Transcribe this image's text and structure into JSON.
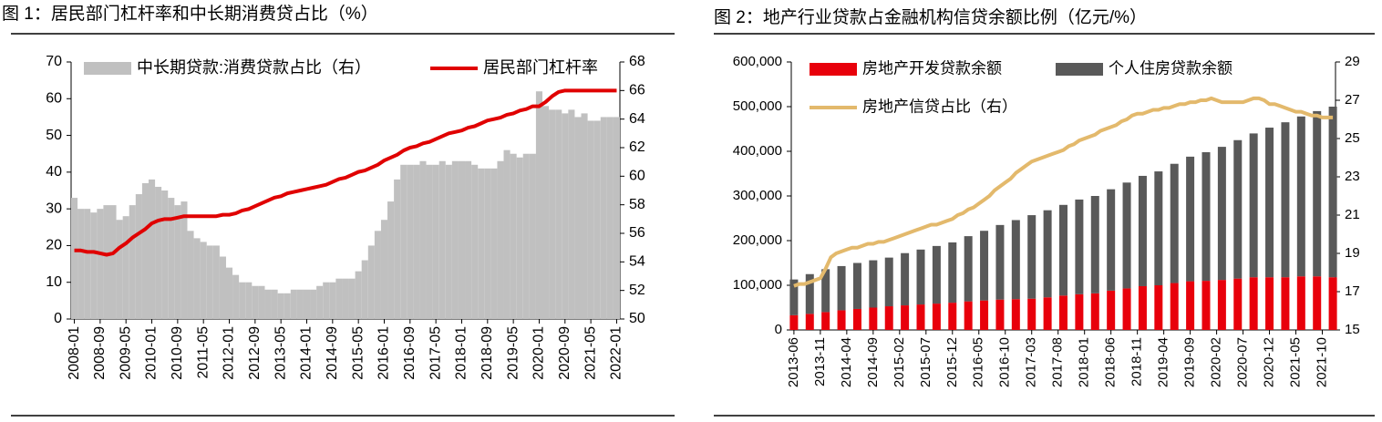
{
  "chart_data": [
    {
      "type": "bar_line",
      "title": "图 1：居民部门杠杆率和中长期消费贷占比（%）",
      "categories": [
        "2008-01",
        null,
        null,
        null,
        "2008-09",
        null,
        null,
        null,
        "2009-05",
        null,
        null,
        null,
        "2010-01",
        null,
        null,
        null,
        "2010-09",
        null,
        null,
        null,
        "2011-05",
        null,
        null,
        null,
        "2012-01",
        null,
        null,
        null,
        "2012-09",
        null,
        null,
        null,
        "2013-05",
        null,
        null,
        null,
        "2014-01",
        null,
        null,
        null,
        "2014-09",
        null,
        null,
        null,
        "2015-05",
        null,
        null,
        null,
        "2016-01",
        null,
        null,
        null,
        "2016-09",
        null,
        null,
        null,
        "2017-05",
        null,
        null,
        null,
        "2018-01",
        null,
        null,
        null,
        "2018-09",
        null,
        null,
        null,
        "2019-05",
        null,
        null,
        null,
        "2020-01",
        null,
        null,
        null,
        "2020-09",
        null,
        null,
        null,
        "2021-05",
        null,
        null,
        null,
        "2022-01"
      ],
      "series": [
        {
          "name": "中长期贷款:消费贷款占比（右）",
          "type": "bar",
          "color": "#c0c0c0",
          "axis": "y",
          "values": [
            33,
            30,
            30,
            29,
            30,
            31,
            31,
            27,
            28,
            31,
            34,
            37,
            38,
            36,
            35,
            33,
            31,
            32,
            24,
            22,
            21,
            20,
            20,
            17,
            14,
            12,
            10,
            10,
            9,
            9,
            8,
            8,
            7,
            7,
            8,
            8,
            8,
            8,
            9,
            10,
            10,
            11,
            11,
            11,
            13,
            16,
            20,
            24,
            27,
            32,
            38,
            42,
            42,
            42,
            43,
            42,
            42,
            43,
            42,
            43,
            43,
            43,
            42,
            41,
            41,
            41,
            43,
            46,
            45,
            44,
            45,
            45,
            62,
            58,
            57,
            57,
            56,
            57,
            55,
            56,
            54,
            54,
            55,
            55,
            55
          ]
        },
        {
          "name": "居民部门杠杆率",
          "type": "line",
          "color": "#e00000",
          "axis": "y2",
          "values": [
            54.8,
            54.8,
            54.7,
            54.7,
            54.6,
            54.5,
            54.6,
            55.0,
            55.3,
            55.7,
            56.0,
            56.3,
            56.7,
            56.9,
            57.0,
            57.0,
            57.1,
            57.2,
            57.2,
            57.2,
            57.2,
            57.2,
            57.2,
            57.3,
            57.3,
            57.4,
            57.6,
            57.7,
            57.9,
            58.1,
            58.3,
            58.5,
            58.6,
            58.8,
            58.9,
            59.0,
            59.1,
            59.2,
            59.3,
            59.4,
            59.6,
            59.8,
            59.9,
            60.1,
            60.3,
            60.4,
            60.6,
            60.8,
            61.1,
            61.3,
            61.5,
            61.8,
            62.0,
            62.1,
            62.3,
            62.4,
            62.6,
            62.8,
            63.0,
            63.1,
            63.2,
            63.4,
            63.5,
            63.7,
            63.9,
            64.0,
            64.1,
            64.3,
            64.4,
            64.6,
            64.7,
            64.9,
            64.9,
            65.2,
            65.6,
            65.9,
            66.0,
            66.0,
            66.0,
            66.0,
            66.0,
            66.0,
            66.0,
            66.0,
            66.0
          ]
        }
      ],
      "ylim": [
        0,
        70
      ],
      "yticks": [
        0,
        10,
        20,
        30,
        40,
        50,
        60,
        70
      ],
      "y2lim": [
        50,
        68
      ],
      "y2ticks": [
        50,
        52,
        54,
        56,
        58,
        60,
        62,
        64,
        66,
        68
      ],
      "stacked": false
    },
    {
      "type": "bar_line",
      "title": "图 2：地产行业贷款占金融机构信贷余额比例（亿元/%）",
      "categories": [
        "2013-06",
        null,
        null,
        null,
        null,
        "2013-11",
        null,
        null,
        null,
        null,
        "2014-04",
        null,
        null,
        null,
        null,
        "2014-09",
        null,
        null,
        null,
        null,
        "2015-02",
        null,
        null,
        null,
        null,
        "2015-07",
        null,
        null,
        null,
        null,
        "2015-12",
        null,
        null,
        null,
        null,
        "2016-05",
        null,
        null,
        null,
        null,
        "2016-10",
        null,
        null,
        null,
        null,
        "2017-03",
        null,
        null,
        null,
        null,
        "2017-08",
        null,
        null,
        null,
        null,
        "2018-01",
        null,
        null,
        null,
        null,
        "2018-06",
        null,
        null,
        null,
        null,
        "2018-11",
        null,
        null,
        null,
        null,
        "2019-04",
        null,
        null,
        null,
        null,
        "2019-09",
        null,
        null,
        null,
        null,
        "2020-02",
        null,
        null,
        null,
        null,
        "2020-07",
        null,
        null,
        null,
        null,
        "2020-12",
        null,
        null,
        null,
        null,
        "2021-05",
        null,
        null,
        null,
        null,
        "2021-10",
        null,
        null
      ],
      "series": [
        {
          "name": "房地产开发贷款余额",
          "type": "bar",
          "color": "#e8000b",
          "axis": "y",
          "values": [
            33000,
            null,
            null,
            36000,
            null,
            null,
            40000,
            null,
            null,
            44000,
            null,
            null,
            47000,
            null,
            null,
            50000,
            null,
            null,
            53000,
            null,
            null,
            55000,
            null,
            null,
            57000,
            null,
            null,
            59000,
            null,
            null,
            61000,
            null,
            null,
            64000,
            null,
            null,
            66000,
            null,
            null,
            68000,
            null,
            null,
            69000,
            null,
            null,
            70000,
            null,
            null,
            73000,
            null,
            null,
            77000,
            null,
            null,
            80000,
            null,
            null,
            82000,
            null,
            null,
            88000,
            null,
            null,
            93000,
            null,
            null,
            98000,
            null,
            null,
            100000,
            null,
            null,
            105000,
            null,
            null,
            109000,
            null,
            null,
            110000,
            null,
            null,
            112000,
            null,
            null,
            115000,
            null,
            null,
            118000,
            null,
            null,
            118000,
            null,
            null,
            118000,
            null,
            null,
            120000,
            null,
            null,
            120000,
            null,
            null,
            118000
          ]
        },
        {
          "name": "个人住房贷款余额",
          "type": "bar",
          "color": "#595959",
          "axis": "y",
          "values": [
            80000,
            null,
            null,
            89000,
            null,
            null,
            96000,
            null,
            null,
            99000,
            null,
            null,
            103000,
            null,
            null,
            106000,
            null,
            null,
            109000,
            null,
            null,
            117000,
            null,
            null,
            123000,
            null,
            null,
            129000,
            null,
            null,
            135000,
            null,
            null,
            146000,
            null,
            null,
            156000,
            null,
            null,
            167000,
            null,
            null,
            177000,
            null,
            null,
            187000,
            null,
            null,
            195000,
            null,
            null,
            203000,
            null,
            null,
            212000,
            null,
            null,
            218000,
            null,
            null,
            227000,
            null,
            null,
            237000,
            null,
            null,
            247000,
            null,
            null,
            255000,
            null,
            null,
            267000,
            null,
            null,
            279000,
            null,
            null,
            288000,
            null,
            null,
            298000,
            null,
            null,
            310000,
            null,
            null,
            322000,
            null,
            null,
            335000,
            null,
            null,
            347000,
            null,
            null,
            358000,
            null,
            null,
            370000,
            null,
            null,
            382000
          ]
        },
        {
          "name": "房地产信贷占比（右）",
          "type": "line",
          "color": "#e3b96c",
          "axis": "y2",
          "values": [
            17.3,
            17.4,
            17.4,
            17.5,
            17.6,
            17.7,
            18.2,
            18.8,
            19.0,
            19.1,
            19.2,
            19.3,
            19.3,
            19.4,
            19.5,
            19.5,
            19.6,
            19.6,
            19.7,
            19.8,
            19.9,
            20.0,
            20.1,
            20.2,
            20.3,
            20.4,
            20.5,
            20.5,
            20.6,
            20.7,
            20.8,
            21.0,
            21.1,
            21.3,
            21.4,
            21.6,
            21.8,
            22.0,
            22.3,
            22.5,
            22.7,
            22.9,
            23.2,
            23.4,
            23.6,
            23.8,
            23.9,
            24.0,
            24.1,
            24.2,
            24.3,
            24.4,
            24.6,
            24.7,
            24.9,
            25.0,
            25.1,
            25.2,
            25.4,
            25.5,
            25.6,
            25.7,
            25.9,
            26.0,
            26.2,
            26.3,
            26.3,
            26.4,
            26.5,
            26.5,
            26.6,
            26.6,
            26.7,
            26.8,
            26.8,
            26.9,
            26.9,
            27.0,
            27.0,
            27.1,
            27.0,
            26.9,
            26.9,
            26.9,
            26.9,
            26.9,
            27.0,
            27.1,
            27.1,
            27.0,
            26.8,
            26.8,
            26.7,
            26.6,
            26.5,
            26.4,
            26.4,
            26.3,
            26.2,
            26.2,
            26.1,
            26.1,
            26.1
          ]
        }
      ],
      "ylim": [
        0,
        600000
      ],
      "yticks": [
        0,
        {
          "value": 100000,
          "label": "100,000"
        },
        {
          "value": 200000,
          "label": "200,000"
        },
        {
          "value": 300000,
          "label": "300,000"
        },
        {
          "value": 400000,
          "label": "400,000"
        },
        {
          "value": 500000,
          "label": "500,000"
        },
        {
          "value": 600000,
          "label": "600,000"
        }
      ],
      "y2lim": [
        15,
        29
      ],
      "y2ticks": [
        15,
        17,
        19,
        21,
        23,
        25,
        27,
        29
      ],
      "stacked": true
    }
  ]
}
